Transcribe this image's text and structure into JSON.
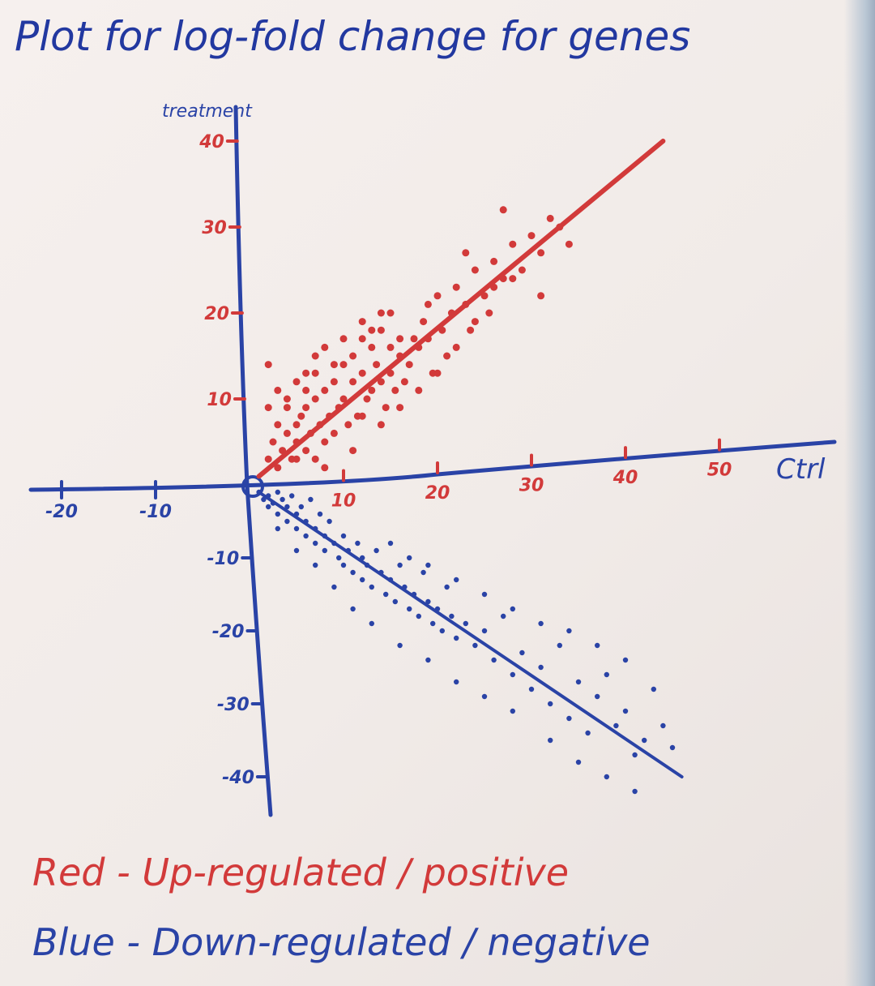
{
  "chart_data": {
    "type": "scatter",
    "title": "Plot for log-fold change for genes",
    "xlabel": "Ctrl",
    "ylabel": "treatment",
    "xlim": [
      -26,
      58
    ],
    "ylim": [
      -45,
      46
    ],
    "x_ticks": [
      {
        "value": -20,
        "label": "-20"
      },
      {
        "value": -10,
        "label": "-10"
      },
      {
        "value": 10,
        "label": "10"
      },
      {
        "value": 20,
        "label": "20"
      },
      {
        "value": 30,
        "label": "30"
      },
      {
        "value": 40,
        "label": "40"
      },
      {
        "value": 50,
        "label": "50"
      }
    ],
    "y_ticks": [
      {
        "value": 40,
        "label": "40"
      },
      {
        "value": 30,
        "label": "30"
      },
      {
        "value": 20,
        "label": "20"
      },
      {
        "value": 10,
        "label": "10"
      },
      {
        "value": -10,
        "label": "-10"
      },
      {
        "value": -20,
        "label": "-20"
      },
      {
        "value": -30,
        "label": "-30"
      },
      {
        "value": -40,
        "label": "-40"
      }
    ],
    "origin_label": "0",
    "series": [
      {
        "name": "Red",
        "color": "#d23a3a",
        "trend": {
          "x": [
            1,
            44
          ],
          "y": [
            1,
            40
          ]
        },
        "points": [
          [
            2,
            3
          ],
          [
            2.5,
            5
          ],
          [
            3,
            2
          ],
          [
            3.5,
            4
          ],
          [
            4,
            6
          ],
          [
            4.5,
            3
          ],
          [
            5,
            7
          ],
          [
            5,
            5
          ],
          [
            5.5,
            8
          ],
          [
            6,
            4
          ],
          [
            6,
            9
          ],
          [
            6.5,
            6
          ],
          [
            7,
            10
          ],
          [
            7,
            3
          ],
          [
            7.5,
            7
          ],
          [
            8,
            11
          ],
          [
            8,
            5
          ],
          [
            8.5,
            8
          ],
          [
            9,
            12
          ],
          [
            9,
            6
          ],
          [
            9.5,
            9
          ],
          [
            10,
            10
          ],
          [
            10,
            14
          ],
          [
            10.5,
            7
          ],
          [
            11,
            12
          ],
          [
            11,
            15
          ],
          [
            11.5,
            8
          ],
          [
            12,
            13
          ],
          [
            12,
            17
          ],
          [
            12.5,
            10
          ],
          [
            13,
            11
          ],
          [
            13,
            16
          ],
          [
            13.5,
            14
          ],
          [
            14,
            12
          ],
          [
            14,
            18
          ],
          [
            14.5,
            9
          ],
          [
            15,
            13
          ],
          [
            15,
            20
          ],
          [
            15.5,
            11
          ],
          [
            16,
            15
          ],
          [
            16.5,
            12
          ],
          [
            17,
            14
          ],
          [
            17.5,
            17
          ],
          [
            18,
            16
          ],
          [
            18.5,
            19
          ],
          [
            19,
            21
          ],
          [
            19.5,
            13
          ],
          [
            20,
            22
          ],
          [
            20.5,
            18
          ],
          [
            21,
            15
          ],
          [
            21.5,
            20
          ],
          [
            22,
            23
          ],
          [
            23,
            21
          ],
          [
            23.5,
            18
          ],
          [
            24,
            19
          ],
          [
            25,
            22
          ],
          [
            25.5,
            20
          ],
          [
            26,
            26
          ],
          [
            27,
            24
          ],
          [
            28,
            28
          ],
          [
            29,
            25
          ],
          [
            30,
            29
          ],
          [
            31,
            27
          ],
          [
            32,
            31
          ],
          [
            33,
            30
          ],
          [
            34,
            28
          ],
          [
            3,
            11
          ],
          [
            2,
            14
          ],
          [
            4,
            10
          ],
          [
            5,
            12
          ],
          [
            6,
            11
          ],
          [
            7,
            13
          ],
          [
            9,
            14
          ],
          [
            12,
            19
          ],
          [
            14,
            20
          ],
          [
            16,
            17
          ],
          [
            18,
            11
          ],
          [
            20,
            13
          ],
          [
            22,
            16
          ],
          [
            24,
            25
          ],
          [
            26,
            23
          ],
          [
            28,
            24
          ],
          [
            31,
            22
          ],
          [
            8,
            16
          ],
          [
            10,
            17
          ],
          [
            12,
            8
          ],
          [
            14,
            7
          ],
          [
            6,
            13
          ],
          [
            16,
            9
          ],
          [
            11,
            4
          ],
          [
            4,
            9
          ],
          [
            3,
            7
          ],
          [
            2,
            9
          ],
          [
            5,
            3
          ],
          [
            8,
            2
          ],
          [
            7,
            15
          ],
          [
            13,
            18
          ],
          [
            15,
            16
          ],
          [
            19,
            17
          ],
          [
            23,
            27
          ],
          [
            27,
            32
          ]
        ]
      },
      {
        "name": "Blue",
        "color": "#2a43a6",
        "trend": {
          "x": [
            1,
            46
          ],
          "y": [
            -1,
            -40
          ]
        },
        "points": [
          [
            1,
            -1
          ],
          [
            1.5,
            -2
          ],
          [
            2,
            -1.5
          ],
          [
            2,
            -3
          ],
          [
            2.5,
            -2.5
          ],
          [
            3,
            -1
          ],
          [
            3,
            -4
          ],
          [
            3.5,
            -2
          ],
          [
            4,
            -3
          ],
          [
            4,
            -5
          ],
          [
            4.5,
            -1.5
          ],
          [
            5,
            -4
          ],
          [
            5,
            -6
          ],
          [
            5.5,
            -3
          ],
          [
            6,
            -5
          ],
          [
            6,
            -7
          ],
          [
            6.5,
            -2
          ],
          [
            7,
            -6
          ],
          [
            7,
            -8
          ],
          [
            7.5,
            -4
          ],
          [
            8,
            -7
          ],
          [
            8,
            -9
          ],
          [
            8.5,
            -5
          ],
          [
            9,
            -8
          ],
          [
            9.5,
            -10
          ],
          [
            10,
            -7
          ],
          [
            10,
            -11
          ],
          [
            10.5,
            -9
          ],
          [
            11,
            -12
          ],
          [
            11.5,
            -8
          ],
          [
            12,
            -10
          ],
          [
            12,
            -13
          ],
          [
            12.5,
            -11
          ],
          [
            13,
            -14
          ],
          [
            13.5,
            -9
          ],
          [
            14,
            -12
          ],
          [
            14.5,
            -15
          ],
          [
            15,
            -13
          ],
          [
            15.5,
            -16
          ],
          [
            16,
            -11
          ],
          [
            16.5,
            -14
          ],
          [
            17,
            -17
          ],
          [
            17.5,
            -15
          ],
          [
            18,
            -18
          ],
          [
            18.5,
            -12
          ],
          [
            19,
            -16
          ],
          [
            19.5,
            -19
          ],
          [
            20,
            -17
          ],
          [
            20.5,
            -20
          ],
          [
            21,
            -14
          ],
          [
            21.5,
            -18
          ],
          [
            22,
            -21
          ],
          [
            23,
            -19
          ],
          [
            24,
            -22
          ],
          [
            25,
            -20
          ],
          [
            26,
            -24
          ],
          [
            27,
            -18
          ],
          [
            28,
            -26
          ],
          [
            29,
            -23
          ],
          [
            30,
            -28
          ],
          [
            31,
            -25
          ],
          [
            32,
            -30
          ],
          [
            33,
            -22
          ],
          [
            34,
            -32
          ],
          [
            35,
            -27
          ],
          [
            36,
            -34
          ],
          [
            37,
            -29
          ],
          [
            38,
            -26
          ],
          [
            39,
            -33
          ],
          [
            40,
            -31
          ],
          [
            41,
            -37
          ],
          [
            42,
            -35
          ],
          [
            43,
            -28
          ],
          [
            44,
            -33
          ],
          [
            45,
            -36
          ],
          [
            15,
            -8
          ],
          [
            17,
            -10
          ],
          [
            19,
            -11
          ],
          [
            22,
            -13
          ],
          [
            25,
            -15
          ],
          [
            28,
            -17
          ],
          [
            31,
            -19
          ],
          [
            34,
            -20
          ],
          [
            37,
            -22
          ],
          [
            40,
            -24
          ],
          [
            3,
            -6
          ],
          [
            5,
            -9
          ],
          [
            7,
            -11
          ],
          [
            9,
            -14
          ],
          [
            11,
            -17
          ],
          [
            13,
            -19
          ],
          [
            16,
            -22
          ],
          [
            19,
            -24
          ],
          [
            22,
            -27
          ],
          [
            25,
            -29
          ],
          [
            28,
            -31
          ],
          [
            32,
            -35
          ],
          [
            35,
            -38
          ],
          [
            38,
            -40
          ],
          [
            41,
            -42
          ]
        ]
      }
    ],
    "legend": {
      "position": "bottom-left",
      "entries": [
        {
          "name": "Red",
          "sep": "-",
          "text": "Up-regulated / positive",
          "color": "#d23a3a"
        },
        {
          "name": "Blue",
          "sep": "-",
          "text": "Down-regulated / negative",
          "color": "#2a43a6"
        }
      ]
    },
    "colors": {
      "axis": "#2a43a6",
      "title": "#2238a0",
      "red": "#d23a3a",
      "blue": "#2a43a6"
    }
  }
}
